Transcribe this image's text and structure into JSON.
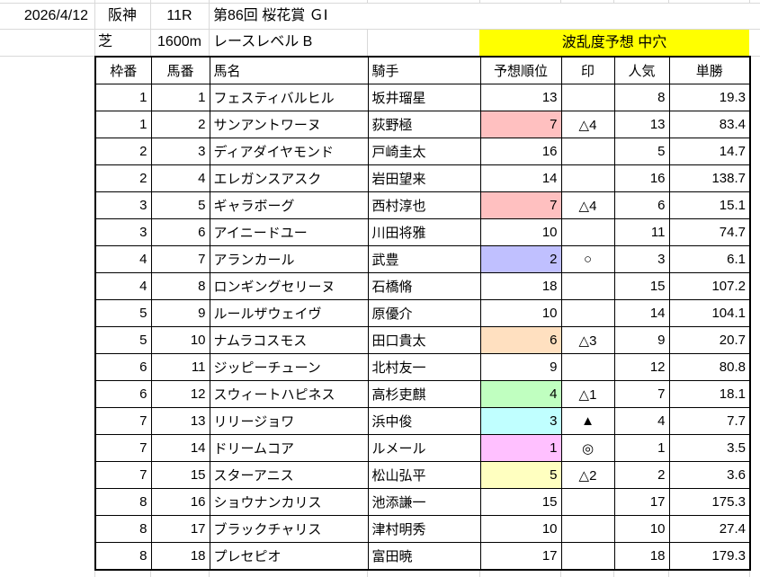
{
  "meta": {
    "date": "2026/4/12",
    "track": "阪神",
    "race_no": "11R",
    "race_title": "第86回 桜花賞 ＧⅠ",
    "surface": "芝",
    "distance": "1600m",
    "race_level": "レースレベル B",
    "banner": "波乱度予想 中穴",
    "banner_bg": "#ffff00"
  },
  "colors": {
    "grid_line": "#d9d9d9",
    "table_border": "#000000",
    "rank_1": "#ffc0ff",
    "rank_2": "#c0c0ff",
    "rank_3": "#c0ffff",
    "rank_4": "#c0ffc0",
    "rank_5": "#ffffc0",
    "rank_6": "#ffe0c0",
    "rank_7": "#ffc0c0"
  },
  "table": {
    "headers": [
      "枠番",
      "馬番",
      "馬名",
      "騎手",
      "予想順位",
      "印",
      "人気",
      "単勝"
    ],
    "rows": [
      {
        "waku": "1",
        "uma": "1",
        "name": "フェスティバルヒル",
        "jockey": "坂井瑠星",
        "rank": "13",
        "mark": "",
        "pop": "8",
        "odds": "19.3",
        "bg": ""
      },
      {
        "waku": "1",
        "uma": "2",
        "name": "サンアントワーヌ",
        "jockey": "荻野極",
        "rank": "7",
        "mark": "△4",
        "pop": "13",
        "odds": "83.4",
        "bg": "#ffc0c0"
      },
      {
        "waku": "2",
        "uma": "3",
        "name": "ディアダイヤモンド",
        "jockey": "戸崎圭太",
        "rank": "16",
        "mark": "",
        "pop": "5",
        "odds": "14.7",
        "bg": ""
      },
      {
        "waku": "2",
        "uma": "4",
        "name": "エレガンスアスク",
        "jockey": "岩田望来",
        "rank": "14",
        "mark": "",
        "pop": "16",
        "odds": "138.7",
        "bg": ""
      },
      {
        "waku": "3",
        "uma": "5",
        "name": "ギャラボーグ",
        "jockey": "西村淳也",
        "rank": "7",
        "mark": "△4",
        "pop": "6",
        "odds": "15.1",
        "bg": "#ffc0c0"
      },
      {
        "waku": "3",
        "uma": "6",
        "name": "アイニードユー",
        "jockey": "川田将雅",
        "rank": "10",
        "mark": "",
        "pop": "11",
        "odds": "74.7",
        "bg": ""
      },
      {
        "waku": "4",
        "uma": "7",
        "name": "アランカール",
        "jockey": "武豊",
        "rank": "2",
        "mark": "○",
        "pop": "3",
        "odds": "6.1",
        "bg": "#c0c0ff"
      },
      {
        "waku": "4",
        "uma": "8",
        "name": "ロンギングセリーヌ",
        "jockey": "石橋脩",
        "rank": "18",
        "mark": "",
        "pop": "15",
        "odds": "107.2",
        "bg": ""
      },
      {
        "waku": "5",
        "uma": "9",
        "name": "ルールザウェイヴ",
        "jockey": "原優介",
        "rank": "10",
        "mark": "",
        "pop": "14",
        "odds": "104.1",
        "bg": ""
      },
      {
        "waku": "5",
        "uma": "10",
        "name": "ナムラコスモス",
        "jockey": "田口貴太",
        "rank": "6",
        "mark": "△3",
        "pop": "9",
        "odds": "20.7",
        "bg": "#ffe0c0"
      },
      {
        "waku": "6",
        "uma": "11",
        "name": "ジッピーチューン",
        "jockey": "北村友一",
        "rank": "9",
        "mark": "",
        "pop": "12",
        "odds": "80.8",
        "bg": ""
      },
      {
        "waku": "6",
        "uma": "12",
        "name": "スウィートハピネス",
        "jockey": "高杉吏麒",
        "rank": "4",
        "mark": "△1",
        "pop": "7",
        "odds": "18.1",
        "bg": "#c0ffc0"
      },
      {
        "waku": "7",
        "uma": "13",
        "name": "リリージョワ",
        "jockey": "浜中俊",
        "rank": "3",
        "mark": "▲",
        "pop": "4",
        "odds": "7.7",
        "bg": "#c0ffff"
      },
      {
        "waku": "7",
        "uma": "14",
        "name": "ドリームコア",
        "jockey": "ルメール",
        "rank": "1",
        "mark": "◎",
        "pop": "1",
        "odds": "3.5",
        "bg": "#ffc0ff"
      },
      {
        "waku": "7",
        "uma": "15",
        "name": "スターアニス",
        "jockey": "松山弘平",
        "rank": "5",
        "mark": "△2",
        "pop": "2",
        "odds": "3.6",
        "bg": "#ffffc0"
      },
      {
        "waku": "8",
        "uma": "16",
        "name": "ショウナンカリス",
        "jockey": "池添謙一",
        "rank": "15",
        "mark": "",
        "pop": "17",
        "odds": "175.3",
        "bg": ""
      },
      {
        "waku": "8",
        "uma": "17",
        "name": "ブラックチャリス",
        "jockey": "津村明秀",
        "rank": "10",
        "mark": "",
        "pop": "10",
        "odds": "27.4",
        "bg": ""
      },
      {
        "waku": "8",
        "uma": "18",
        "name": "プレセピオ",
        "jockey": "富田暁",
        "rank": "17",
        "mark": "",
        "pop": "18",
        "odds": "179.3",
        "bg": ""
      }
    ]
  }
}
